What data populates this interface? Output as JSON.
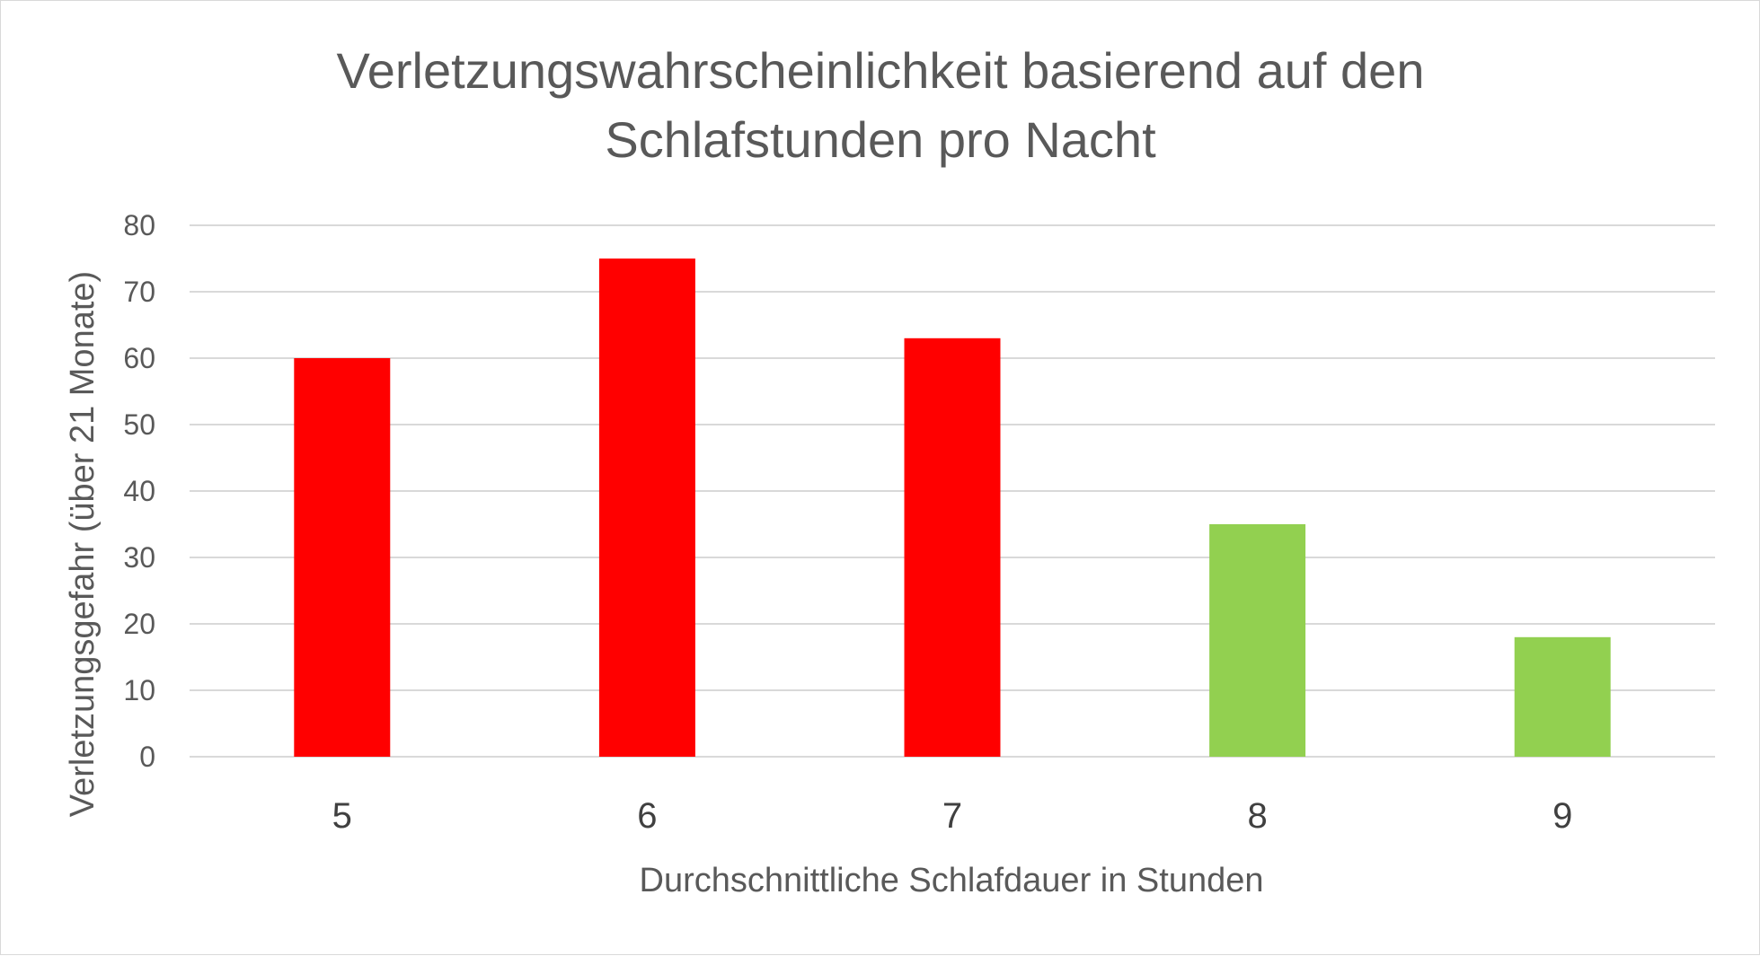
{
  "chart_data": {
    "type": "bar",
    "title_lines": [
      "Verletzungswahrscheinlichkeit basierend auf den",
      "Schlafstunden pro Nacht"
    ],
    "xlabel": "Durchschnittliche Schlafdauer in Stunden",
    "ylabel": "Verletzungsgefahr (über 21 Monate)",
    "categories": [
      "5",
      "6",
      "7",
      "8",
      "9"
    ],
    "values": [
      60,
      75,
      63,
      35,
      18
    ],
    "bar_colors": [
      "#ff0000",
      "#ff0000",
      "#ff0000",
      "#92d050",
      "#92d050"
    ],
    "ylim": [
      0,
      80
    ],
    "yticks": [
      0,
      10,
      20,
      30,
      40,
      50,
      60,
      70,
      80
    ],
    "grid": true,
    "gridline_color": "#d9d9d9",
    "legend": false
  }
}
